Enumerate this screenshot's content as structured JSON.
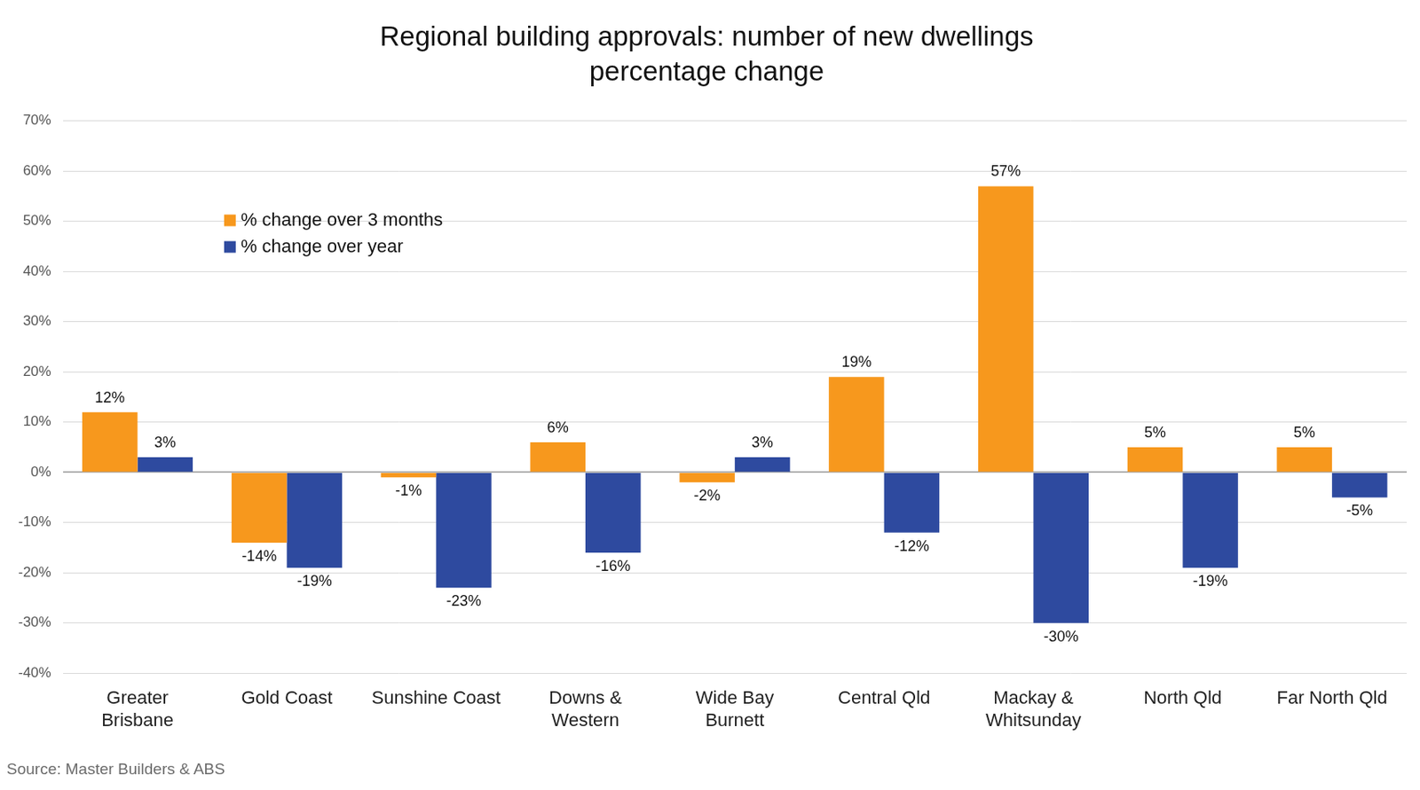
{
  "chart_data": {
    "type": "bar",
    "title": [
      "Regional building approvals: number of new dwellings",
      "percentage change"
    ],
    "annotations": [
      "Source: Master Builders & ABS"
    ],
    "categories": [
      [
        "Greater",
        "Brisbane"
      ],
      [
        "Gold Coast"
      ],
      [
        "Sunshine Coast"
      ],
      [
        "Downs &",
        "Western"
      ],
      [
        "Wide Bay",
        "Burnett"
      ],
      [
        "Central Qld"
      ],
      [
        "Mackay &",
        "Whitsunday"
      ],
      [
        "North Qld"
      ],
      [
        "Far North Qld"
      ]
    ],
    "series": [
      {
        "name": "% change over 3 months",
        "color": "#f7981d",
        "values": [
          12,
          -14,
          -1,
          6,
          -2,
          19,
          57,
          5,
          5
        ],
        "value_labels": [
          "12%",
          "-14%",
          "-1%",
          "6%",
          "-2%",
          "19%",
          "57%",
          "5%",
          "5%"
        ]
      },
      {
        "name": "% change over year",
        "color": "#2e4a9f",
        "values": [
          3,
          -19,
          -23,
          -16,
          3,
          -12,
          -30,
          -19,
          -5
        ],
        "value_labels": [
          "3%",
          "-19%",
          "-23%",
          "-16%",
          "3%",
          "-12%",
          "-30%",
          "-19%",
          "-5%"
        ]
      }
    ],
    "ylim": [
      -40,
      70
    ],
    "yticks": [
      {
        "value": -40,
        "label": "-40%"
      },
      {
        "value": -30,
        "label": "-30%"
      },
      {
        "value": -20,
        "label": "-20%"
      },
      {
        "value": -10,
        "label": "-10%"
      },
      {
        "value": 0,
        "label": "0%"
      },
      {
        "value": 10,
        "label": "10%"
      },
      {
        "value": 20,
        "label": "20%"
      },
      {
        "value": 30,
        "label": "30%"
      },
      {
        "value": 40,
        "label": "40%"
      },
      {
        "value": 50,
        "label": "50%"
      },
      {
        "value": 60,
        "label": "60%"
      },
      {
        "value": 70,
        "label": "70%"
      }
    ],
    "grid": true,
    "legend": "upper left",
    "data_labels": true
  }
}
